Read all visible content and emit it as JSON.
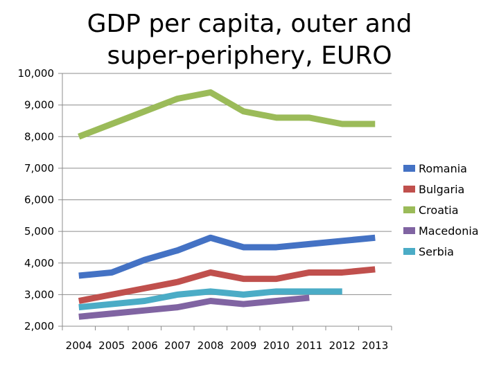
{
  "chart_data": {
    "type": "line",
    "title": "GDP per capita, outer and super-periphery, EURO",
    "xlabel": "",
    "ylabel": "",
    "x": [
      "2004",
      "2005",
      "2006",
      "2007",
      "2008",
      "2009",
      "2010",
      "2011",
      "2012",
      "2013"
    ],
    "ylim": [
      2000,
      10000
    ],
    "yticks": [
      "2,000",
      "3,000",
      "4,000",
      "5,000",
      "6,000",
      "7,000",
      "8,000",
      "9,000",
      "10,000"
    ],
    "grid": true,
    "legend": "right",
    "series": [
      {
        "name": "Romania",
        "color": "#4472C4",
        "values": [
          3600,
          3700,
          4100,
          4400,
          4800,
          4500,
          4500,
          4600,
          4700,
          4800
        ]
      },
      {
        "name": "Bulgaria",
        "color": "#C0504D",
        "values": [
          2800,
          3000,
          3200,
          3400,
          3700,
          3500,
          3500,
          3700,
          3700,
          3800
        ]
      },
      {
        "name": "Croatia",
        "color": "#9BBB59",
        "values": [
          8000,
          8400,
          8800,
          9200,
          9400,
          8800,
          8600,
          8600,
          8400,
          8400
        ]
      },
      {
        "name": "Macedonia",
        "color": "#8064A2",
        "values": [
          2300,
          2400,
          2500,
          2600,
          2800,
          2700,
          2800,
          2900,
          null,
          null
        ]
      },
      {
        "name": "Serbia",
        "color": "#4BACC6",
        "values": [
          2600,
          2700,
          2800,
          3000,
          3100,
          3000,
          3100,
          3100,
          3100,
          null
        ]
      }
    ]
  }
}
